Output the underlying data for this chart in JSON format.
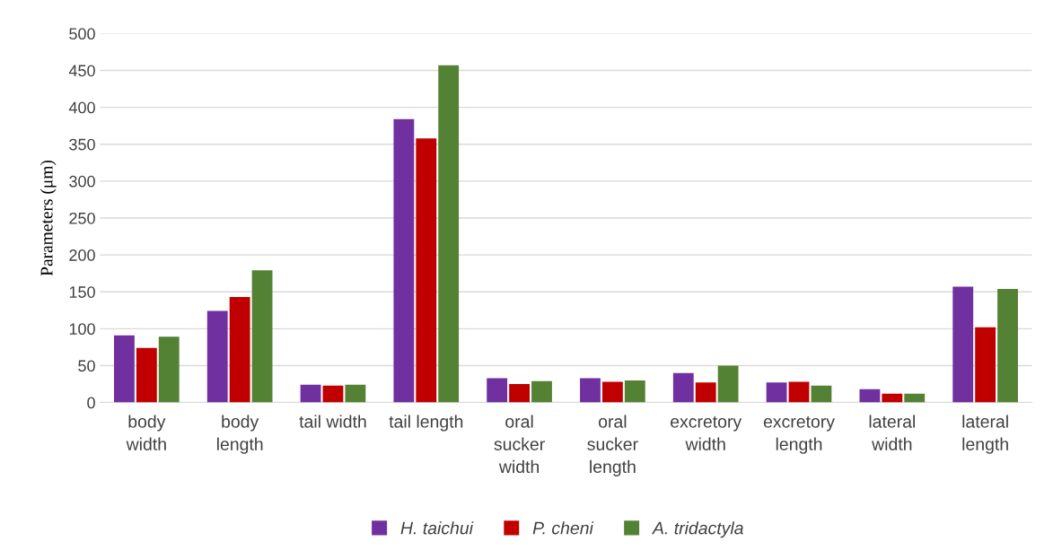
{
  "chart_data": {
    "type": "bar",
    "ylabel": "Parameters (μm)",
    "categories": [
      "body\nwidth",
      "body\nlength",
      "tail width",
      "tail length",
      "oral\nsucker\nwidth",
      "oral\nsucker\nlength",
      "excretory\nwidth",
      "excretory\nlength",
      "lateral\nwidth",
      "lateral\nlength"
    ],
    "series": [
      {
        "name": "H. taichui",
        "color": "#7030a0",
        "values": [
          91,
          124,
          24,
          384,
          33,
          33,
          40,
          27,
          18,
          157
        ]
      },
      {
        "name": "P. cheni",
        "color": "#c00000",
        "values": [
          74,
          143,
          23,
          358,
          25,
          28,
          27,
          28,
          12,
          102
        ]
      },
      {
        "name": "A. tridactyla",
        "color": "#548235",
        "values": [
          89,
          179,
          24,
          457,
          29,
          30,
          50,
          23,
          12,
          154
        ]
      }
    ],
    "ylim": [
      0,
      500
    ],
    "yticks": [
      0,
      50,
      100,
      150,
      200,
      250,
      300,
      350,
      400,
      450,
      500
    ],
    "grid": "y",
    "legend": "bottom"
  }
}
